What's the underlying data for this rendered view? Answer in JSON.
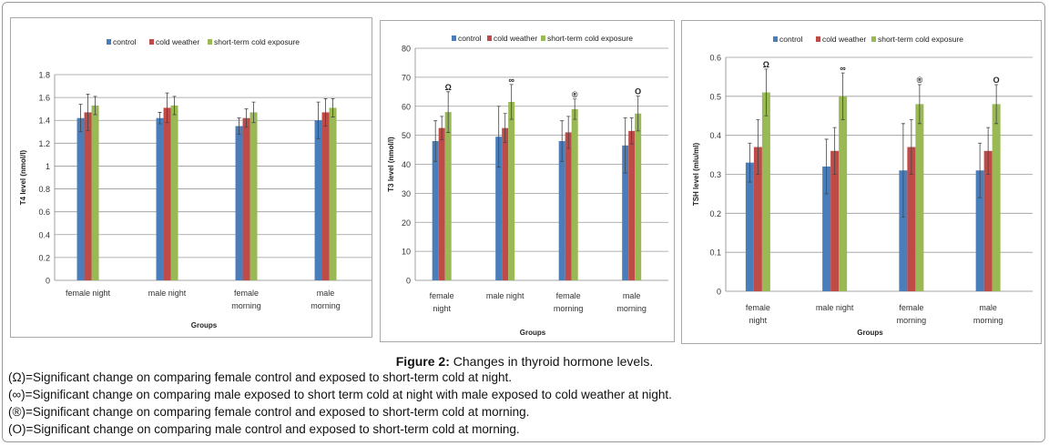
{
  "figure": {
    "label": "Figure 2:",
    "title": "Changes in thyroid hormone levels.",
    "notes": [
      "(Ω)=Significant change on comparing female control and exposed to short-term cold at night.",
      "(∞)=Significant change on comparing male exposed to short term cold at night with male exposed to cold weather at night.",
      "(®)=Significant change on comparing female control and exposed to short-term cold at morning.",
      "(O)=Significant change on comparing male control and exposed to short-term cold at morning."
    ]
  },
  "colors": {
    "control": "#4a7ebb",
    "cold": "#be4b48",
    "short": "#98b954"
  },
  "chart_data": [
    {
      "type": "bar",
      "title": "",
      "xlabel": "Groups",
      "ylabel": "T4 level (nmol/l)",
      "ylim": [
        0,
        1.8
      ],
      "yticks": [
        "0",
        "0.2",
        "0.4",
        "0.6",
        "0.8",
        "1",
        "1.2",
        "1.4",
        "1.6",
        "1.8"
      ],
      "categories": [
        [
          "female night"
        ],
        [
          "male night"
        ],
        [
          "female",
          "morning"
        ],
        [
          "male",
          "morning"
        ]
      ],
      "legend": [
        "control",
        "cold weather",
        "short-term cold exposure"
      ],
      "series": [
        {
          "name": "control",
          "values": [
            1.42,
            1.42,
            1.35,
            1.4
          ],
          "errors": [
            0.12,
            0.05,
            0.07,
            0.16
          ]
        },
        {
          "name": "cold weather",
          "values": [
            1.47,
            1.51,
            1.42,
            1.47
          ],
          "errors": [
            0.16,
            0.13,
            0.08,
            0.12
          ]
        },
        {
          "name": "short-term cold exposure",
          "values": [
            1.53,
            1.53,
            1.47,
            1.51
          ],
          "errors": [
            0.08,
            0.08,
            0.09,
            0.08
          ]
        }
      ],
      "annotations": [
        "",
        "",
        "",
        ""
      ]
    },
    {
      "type": "bar",
      "title": "",
      "xlabel": "Groups",
      "ylabel": "T3 level (nmol/l)",
      "ylim": [
        0,
        80
      ],
      "yticks": [
        "0",
        "10",
        "20",
        "30",
        "40",
        "50",
        "60",
        "70",
        "80"
      ],
      "categories": [
        [
          "female",
          "night"
        ],
        [
          "male night"
        ],
        [
          "female",
          "morning"
        ],
        [
          "male",
          "morning"
        ]
      ],
      "legend": [
        "control",
        "cold weather",
        "short-term cold exposure"
      ],
      "series": [
        {
          "name": "control",
          "values": [
            48,
            49.5,
            48,
            46.5
          ],
          "errors": [
            7,
            10.5,
            7,
            9.5
          ]
        },
        {
          "name": "cold weather",
          "values": [
            52.5,
            52.5,
            51,
            51.5
          ],
          "errors": [
            4,
            5,
            5.5,
            4.5
          ]
        },
        {
          "name": "short-term cold exposure",
          "values": [
            58,
            61.5,
            59,
            57.5
          ],
          "errors": [
            7,
            6,
            3.5,
            6
          ]
        }
      ],
      "annotations": [
        "Ω",
        "∞",
        "®",
        "O"
      ]
    },
    {
      "type": "bar",
      "title": "",
      "xlabel": "Groups",
      "ylabel": "TSH level (mlu/ml)",
      "ylim": [
        0,
        0.6
      ],
      "yticks": [
        "0",
        "0.1",
        "0.2",
        "0.3",
        "0.4",
        "0.5",
        "0.6"
      ],
      "categories": [
        [
          "female",
          "night"
        ],
        [
          "male night"
        ],
        [
          "female",
          "morning"
        ],
        [
          "male",
          "morning"
        ]
      ],
      "legend": [
        "control",
        "cold weather",
        "short-term cold exposure"
      ],
      "series": [
        {
          "name": "control",
          "values": [
            0.33,
            0.32,
            0.31,
            0.31
          ],
          "errors": [
            0.05,
            0.07,
            0.12,
            0.07
          ]
        },
        {
          "name": "cold weather",
          "values": [
            0.37,
            0.36,
            0.37,
            0.36
          ],
          "errors": [
            0.07,
            0.06,
            0.07,
            0.06
          ]
        },
        {
          "name": "short-term cold exposure",
          "values": [
            0.51,
            0.5,
            0.48,
            0.48
          ],
          "errors": [
            0.06,
            0.06,
            0.05,
            0.05
          ]
        }
      ],
      "annotations": [
        "Ω",
        "∞",
        "®",
        "O"
      ]
    }
  ]
}
